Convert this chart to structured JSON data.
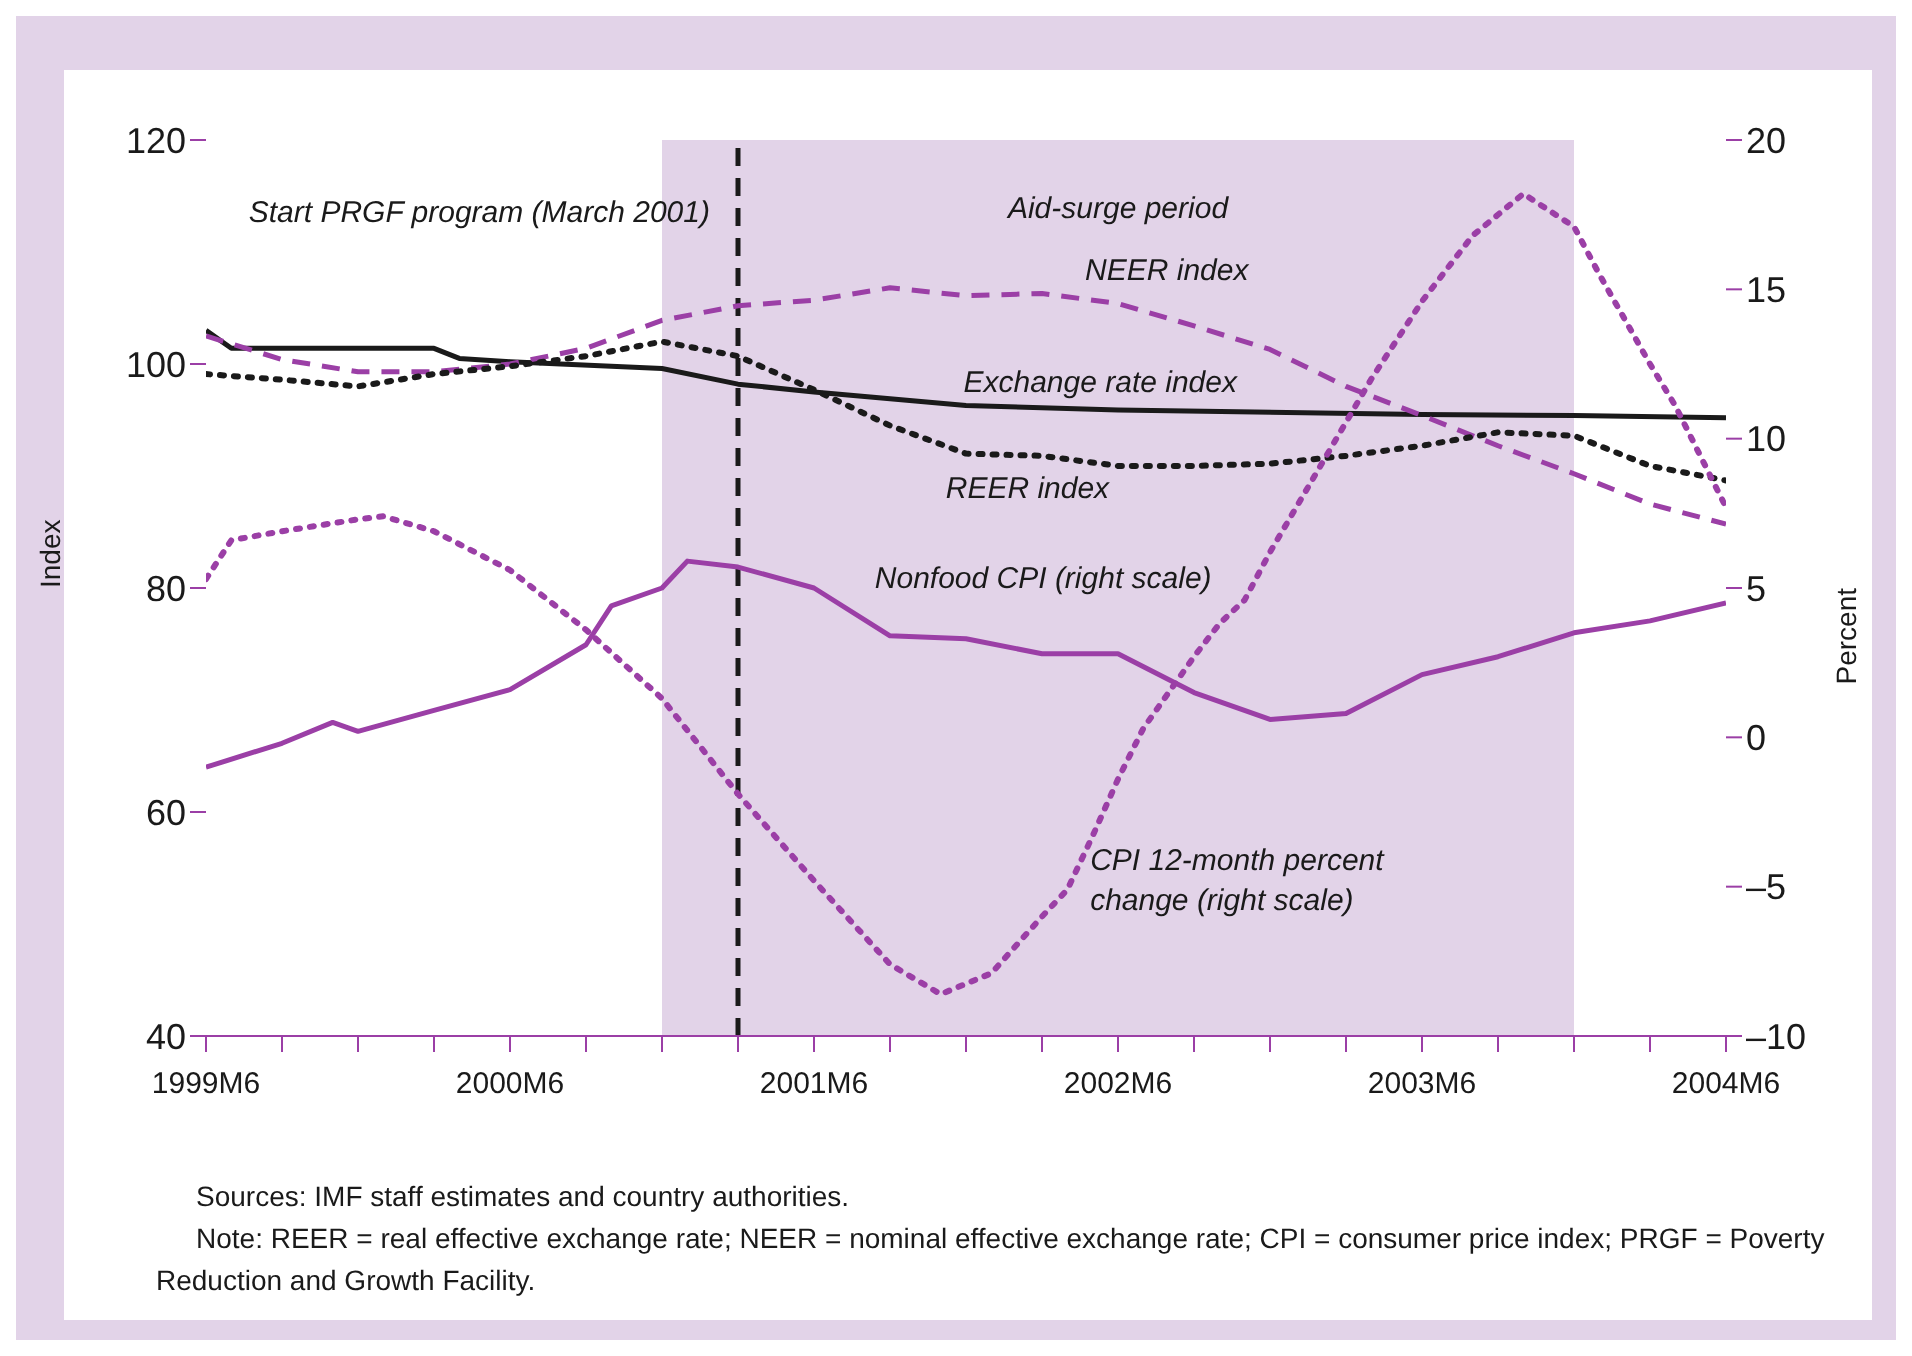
{
  "chart_data": {
    "type": "line",
    "ylabel": "Index",
    "y2label": "Percent",
    "xlim": [
      "1999-06",
      "2004-06"
    ],
    "xticks": [
      {
        "value": "1999-06",
        "label": "1999M6"
      },
      {
        "value": "1999-09",
        "label": null
      },
      {
        "value": "1999-12",
        "label": null
      },
      {
        "value": "2000-03",
        "label": null
      },
      {
        "value": "2000-06",
        "label": "2000M6"
      },
      {
        "value": "2000-09",
        "label": null
      },
      {
        "value": "2000-12",
        "label": null
      },
      {
        "value": "2001-03",
        "label": null
      },
      {
        "value": "2001-06",
        "label": "2001M6"
      },
      {
        "value": "2001-09",
        "label": null
      },
      {
        "value": "2001-12",
        "label": null
      },
      {
        "value": "2002-03",
        "label": null
      },
      {
        "value": "2002-06",
        "label": "2002M6"
      },
      {
        "value": "2002-09",
        "label": null
      },
      {
        "value": "2002-12",
        "label": null
      },
      {
        "value": "2003-03",
        "label": null
      },
      {
        "value": "2003-06",
        "label": "2003M6"
      },
      {
        "value": "2003-09",
        "label": null
      },
      {
        "value": "2003-12",
        "label": null
      },
      {
        "value": "2004-03",
        "label": null
      },
      {
        "value": "2004-06",
        "label": "2004M6"
      }
    ],
    "ylim": [
      40,
      120
    ],
    "yticks": [
      40,
      60,
      80,
      100,
      120
    ],
    "y2lim": [
      -10,
      20
    ],
    "y2ticks": [
      {
        "value": -10,
        "label": "–10"
      },
      {
        "value": -5,
        "label": "–5"
      },
      0,
      5,
      10,
      15,
      20
    ],
    "marker": "none",
    "series": [
      {
        "name": "Exchange rate index",
        "color": "#1a1a1a",
        "line_style": "solid",
        "x": [
          "1999-06",
          "1999-07",
          "2000-03",
          "2000-04",
          "2000-06",
          "2000-12",
          "2001-03",
          "2001-06",
          "2001-12",
          "2002-06",
          "2003-06",
          "2003-12",
          "2004-06"
        ],
        "values": [
          103.0,
          101.4,
          101.4,
          100.5,
          100.2,
          99.6,
          98.2,
          97.5,
          96.3,
          95.9,
          95.5,
          95.4,
          95.2
        ]
      },
      {
        "name": "NEER index",
        "color": "#9b3fa6",
        "line_style": "dashed",
        "x": [
          "1999-06",
          "1999-09",
          "1999-12",
          "2000-03",
          "2000-06",
          "2000-09",
          "2000-12",
          "2001-03",
          "2001-06",
          "2001-09",
          "2001-12",
          "2002-03",
          "2002-06",
          "2002-09",
          "2002-12",
          "2003-03",
          "2003-06",
          "2003-09",
          "2003-12",
          "2004-03",
          "2004-06"
        ],
        "values": [
          102.5,
          100.4,
          99.3,
          99.3,
          100.0,
          101.4,
          103.9,
          105.2,
          105.7,
          106.8,
          106.1,
          106.3,
          105.4,
          103.4,
          101.3,
          98.0,
          95.4,
          92.7,
          90.2,
          87.5,
          85.7
        ]
      },
      {
        "name": "REER index",
        "color": "#1a1a1a",
        "line_style": "dotted",
        "x": [
          "1999-06",
          "1999-09",
          "1999-12",
          "2000-03",
          "2000-06",
          "2000-09",
          "2000-12",
          "2001-03",
          "2001-06",
          "2001-09",
          "2001-12",
          "2002-03",
          "2002-06",
          "2002-09",
          "2002-12",
          "2003-03",
          "2003-06",
          "2003-09",
          "2003-12",
          "2004-03",
          "2004-06"
        ],
        "values": [
          99.1,
          98.6,
          98.0,
          99.1,
          99.8,
          100.7,
          102.0,
          100.7,
          97.7,
          94.5,
          92.0,
          91.8,
          90.9,
          90.9,
          91.1,
          91.8,
          92.7,
          93.9,
          93.6,
          90.9,
          89.6
        ]
      },
      {
        "name": "Nonfood CPI (right scale)",
        "color": "#9b3fa6",
        "line_style": "solid",
        "axis": "y2",
        "x": [
          "1999-06",
          "1999-09",
          "1999-11",
          "1999-12",
          "2000-03",
          "2000-06",
          "2000-09",
          "2000-10",
          "2000-12",
          "2001-01",
          "2001-03",
          "2001-06",
          "2001-09",
          "2001-12",
          "2002-03",
          "2002-06",
          "2002-09",
          "2002-12",
          "2003-03",
          "2003-06",
          "2003-09",
          "2003-12",
          "2004-03",
          "2004-06"
        ],
        "values": [
          -1.0,
          -0.2,
          0.5,
          0.2,
          0.9,
          1.6,
          3.1,
          4.4,
          5.0,
          5.9,
          5.7,
          5.0,
          3.4,
          3.3,
          2.8,
          2.8,
          1.5,
          0.6,
          0.8,
          2.1,
          2.7,
          3.5,
          3.9,
          4.5
        ]
      },
      {
        "name": "CPI 12-month percent change (right scale)",
        "color": "#9b3fa6",
        "line_style": "dotted",
        "axis": "y2",
        "x": [
          "1999-06",
          "1999-07",
          "1999-09",
          "1999-12",
          "2000-01",
          "2000-03",
          "2000-06",
          "2000-09",
          "2000-12",
          "2001-03",
          "2001-06",
          "2001-09",
          "2001-11",
          "2002-01",
          "2002-03",
          "2002-04",
          "2002-05",
          "2002-06",
          "2002-07",
          "2002-08",
          "2002-09",
          "2002-10",
          "2002-11",
          "2002-12",
          "2003-02",
          "2003-04",
          "2003-06",
          "2003-08",
          "2003-10",
          "2003-12",
          "2004-01",
          "2004-03",
          "2004-04",
          "2004-06"
        ],
        "values": [
          5.3,
          6.6,
          6.9,
          7.3,
          7.4,
          6.9,
          5.6,
          3.6,
          1.3,
          -1.9,
          -4.8,
          -7.6,
          -8.6,
          -7.9,
          -6.0,
          -5.1,
          -3.3,
          -1.4,
          0.3,
          1.5,
          2.7,
          3.8,
          4.6,
          6.2,
          9.1,
          12.0,
          14.6,
          16.8,
          18.2,
          17.1,
          15.5,
          12.5,
          11.1,
          7.7
        ]
      }
    ],
    "bands": [
      {
        "axis": "x",
        "from": "2000-12",
        "to": "2003-12",
        "label": "Aid-surge period",
        "color": "#e2d3e8"
      }
    ],
    "ref_lines": [
      {
        "axis": "x",
        "value": "2001-03",
        "label": "Start PRGF program (March 2001)",
        "color": "#1a1a1a",
        "line_style": "dashed"
      }
    ],
    "annotations": [
      "Sources: IMF staff estimates and country authorities.",
      "Note: REER = real effective exchange rate; NEER = nominal effective exchange rate; CPI = consumer price index; PRGF = Poverty Reduction and Growth Facility."
    ]
  }
}
